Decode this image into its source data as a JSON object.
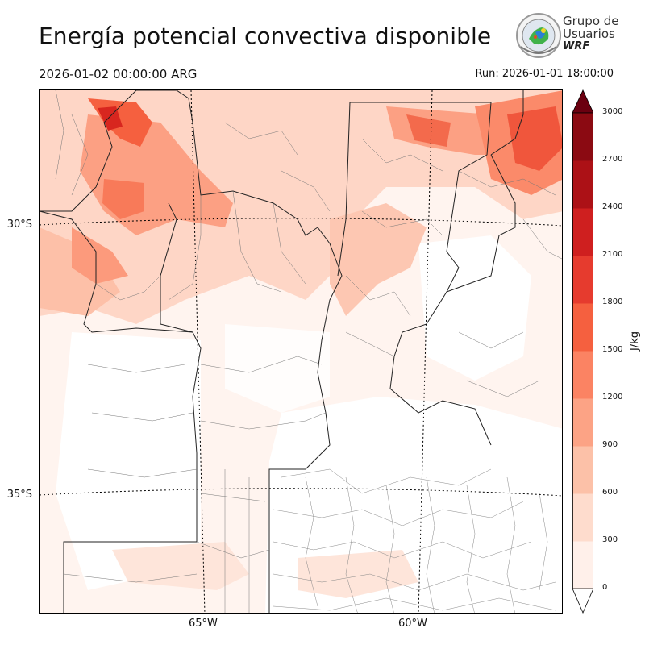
{
  "header": {
    "title": "Energía potencial convectiva disponible",
    "valid_time": "2026-01-02 00:00:00 ARG",
    "run_time": "Run: 2026-01-01 18:00:00"
  },
  "logo": {
    "line1": "Grupo de",
    "line2": "Usuarios",
    "line3": "WRF"
  },
  "map": {
    "latitude_labels": [
      "30°S",
      "35°S"
    ],
    "longitude_labels": [
      "65°W",
      "60°W"
    ],
    "graticule_style": "dotted",
    "shading_colors": [
      "#fee8df",
      "#fdd0c1",
      "#fcb49b",
      "#fb8f72",
      "#f6694c",
      "#e6402e",
      "#c91b1d",
      "#a50f15",
      "#7d0912"
    ]
  },
  "colorbar": {
    "label": "J/kg",
    "ticks": [
      "0",
      "300",
      "600",
      "900",
      "1200",
      "1500",
      "1800",
      "2100",
      "2400",
      "2700",
      "3000"
    ],
    "levels": [
      0,
      300,
      600,
      900,
      1200,
      1500,
      1800,
      2100,
      2400,
      2700,
      3000
    ],
    "colors": [
      "#fff0ea",
      "#fedccd",
      "#fcc1a8",
      "#fca385",
      "#fb8363",
      "#f5603f",
      "#e63b2e",
      "#cf1f1f",
      "#ac1116",
      "#8b0a12",
      "#6b0010"
    ],
    "extend": "both"
  }
}
